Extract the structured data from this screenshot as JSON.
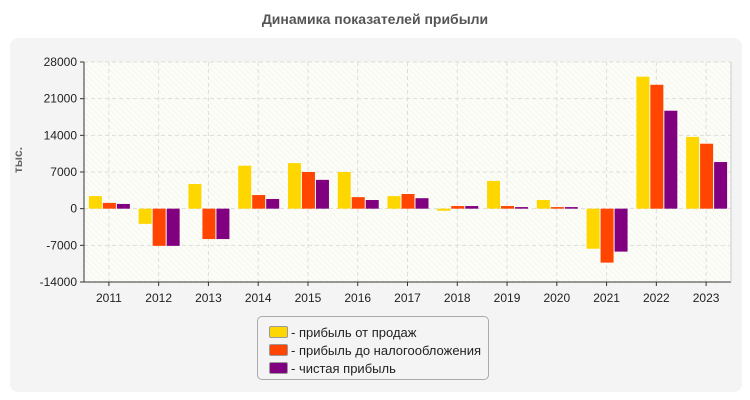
{
  "chart_data": {
    "type": "bar",
    "title": "Динамика показателей прибыли",
    "ylabel": "тыс.",
    "xlabel": "",
    "ylim": [
      -14000,
      28000
    ],
    "yticks": [
      28000,
      21000,
      14000,
      7000,
      0,
      -7000,
      -14000
    ],
    "grid": true,
    "legend_placement": "bottom",
    "categories": [
      "2011",
      "2012",
      "2013",
      "2014",
      "2015",
      "2016",
      "2017",
      "2018",
      "2019",
      "2020",
      "2021",
      "2022",
      "2023"
    ],
    "series": [
      {
        "name": "- прибыль от продаж",
        "color": "#ffd700",
        "values": [
          2400,
          -2900,
          4700,
          8200,
          8700,
          7000,
          2400,
          -400,
          5300,
          1650,
          -7650,
          25200,
          13700
        ]
      },
      {
        "name": "- прибыль до налогообложения",
        "color": "#ff4500",
        "values": [
          1100,
          -7100,
          -5800,
          2600,
          7000,
          2200,
          2800,
          500,
          500,
          300,
          -10300,
          23650,
          12400
        ]
      },
      {
        "name": "- чистая прибыль",
        "color": "#800080",
        "values": [
          900,
          -7100,
          -5800,
          1850,
          5500,
          1650,
          2000,
          500,
          300,
          300,
          -8200,
          18700,
          8900
        ]
      }
    ]
  }
}
